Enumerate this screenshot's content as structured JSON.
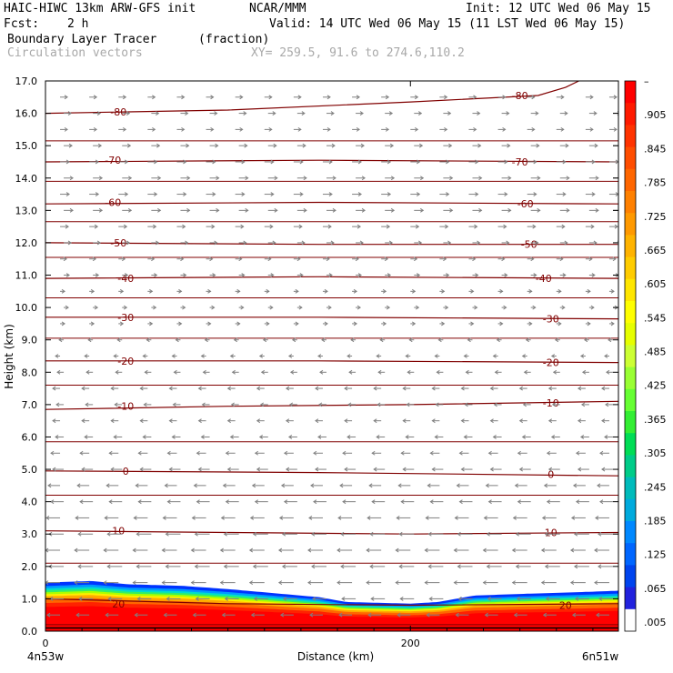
{
  "header": {
    "model": "HAIC-HIWC 13km ARW-GFS init",
    "org": "NCAR/MMM",
    "init": "Init: 12 UTC Wed 06 May 15",
    "fcst_label": "Fcst:",
    "fcst_value": "2 h",
    "valid": "Valid: 14 UTC Wed 06 May 15 (11 LST Wed 06 May 15)",
    "field": "Boundary Layer Tracer",
    "field_units": "(fraction)",
    "overlay": "Circulation vectors",
    "xy": "XY= 259.5, 91.6 to 274.6,110.2"
  },
  "chart_data": {
    "type": "heatmap",
    "ylabel": "Height (km)",
    "xlabel": "Distance (km)",
    "x_left_label": "4n53w",
    "x_right_label": "6n51w",
    "xlim": [
      0,
      314
    ],
    "ylim": [
      0,
      17
    ],
    "x_ticks": [
      0,
      200
    ],
    "x_tick_labels": [
      "0",
      "200"
    ],
    "y_ticks": [
      0,
      1,
      2,
      3,
      4,
      5,
      6,
      7,
      8,
      9,
      10,
      11,
      12,
      13,
      14,
      15,
      16,
      17
    ],
    "y_tick_labels": [
      "0.0",
      "1.0",
      "2.0",
      "3.0",
      "4.0",
      "5.0",
      "6.0",
      "7.0",
      "8.0",
      "9.0",
      "10.0",
      "11.0",
      "12.0",
      "13.0",
      "14.0",
      "15.0",
      "16.0",
      "17.0"
    ],
    "colorbar": {
      "labels": [
        "–",
        ".905",
        ".845",
        ".785",
        ".725",
        ".665",
        ".605",
        ".545",
        ".485",
        ".425",
        ".365",
        ".305",
        ".245",
        ".185",
        ".125",
        ".065",
        ".005"
      ],
      "colors": [
        "#ff0000",
        "#ff1a00",
        "#ff3300",
        "#ff4d00",
        "#ff6600",
        "#ff8000",
        "#ff9900",
        "#ffb300",
        "#ffcc00",
        "#ffe600",
        "#ffff00",
        "#e6ff00",
        "#ccff33",
        "#99ff33",
        "#66ff33",
        "#33ee33",
        "#00dd55",
        "#00cc88",
        "#00bbbb",
        "#00aadd",
        "#0088ff",
        "#0066ff",
        "#0044ee",
        "#2222dd",
        "#ffffff"
      ]
    },
    "tracer_top_km": [
      [
        0,
        1.5
      ],
      [
        25,
        1.55
      ],
      [
        45,
        1.45
      ],
      [
        75,
        1.4
      ],
      [
        100,
        1.3
      ],
      [
        130,
        1.15
      ],
      [
        150,
        1.05
      ],
      [
        165,
        0.9
      ],
      [
        200,
        0.85
      ],
      [
        215,
        0.9
      ],
      [
        235,
        1.1
      ],
      [
        260,
        1.15
      ],
      [
        290,
        1.2
      ],
      [
        314,
        1.25
      ]
    ],
    "temperature_contours_c": [
      {
        "value": "-80",
        "points": [
          [
            0,
            16.0
          ],
          [
            100,
            16.1
          ],
          [
            200,
            16.35
          ],
          [
            270,
            16.55
          ],
          [
            285,
            16.8
          ],
          [
            296,
            17.1
          ]
        ],
        "labels": [
          [
            40,
            16.05
          ],
          [
            260,
            16.55
          ]
        ]
      },
      {
        "value": "-70",
        "points": [
          [
            0,
            14.5
          ],
          [
            150,
            14.55
          ],
          [
            314,
            14.5
          ]
        ],
        "labels": [
          [
            37,
            14.55
          ],
          [
            260,
            14.5
          ]
        ]
      },
      {
        "value": "-60",
        "points": [
          [
            0,
            13.2
          ],
          [
            150,
            13.25
          ],
          [
            314,
            13.2
          ]
        ],
        "labels": [
          [
            37,
            13.25
          ],
          [
            263,
            13.2
          ]
        ]
      },
      {
        "value": "-50",
        "points": [
          [
            0,
            12.0
          ],
          [
            150,
            11.95
          ],
          [
            314,
            11.95
          ]
        ],
        "labels": [
          [
            40,
            12.0
          ],
          [
            265,
            11.95
          ]
        ]
      },
      {
        "value": "-40",
        "points": [
          [
            0,
            10.9
          ],
          [
            150,
            10.95
          ],
          [
            314,
            10.9
          ]
        ],
        "labels": [
          [
            44,
            10.9
          ],
          [
            273,
            10.9
          ]
        ]
      },
      {
        "value": "-30",
        "points": [
          [
            0,
            9.7
          ],
          [
            150,
            9.7
          ],
          [
            314,
            9.65
          ]
        ],
        "labels": [
          [
            44,
            9.7
          ],
          [
            277,
            9.65
          ]
        ]
      },
      {
        "value": "-20",
        "points": [
          [
            0,
            8.35
          ],
          [
            150,
            8.35
          ],
          [
            314,
            8.3
          ]
        ],
        "labels": [
          [
            44,
            8.35
          ],
          [
            277,
            8.3
          ]
        ]
      },
      {
        "value": "-10",
        "points": [
          [
            0,
            6.85
          ],
          [
            100,
            6.95
          ],
          [
            200,
            7.0
          ],
          [
            314,
            7.1
          ]
        ],
        "labels": [
          [
            44,
            6.95
          ],
          [
            277,
            7.05
          ]
        ]
      },
      {
        "value": "0",
        "points": [
          [
            0,
            4.95
          ],
          [
            150,
            4.9
          ],
          [
            314,
            4.8
          ]
        ],
        "labels": [
          [
            44,
            4.95
          ],
          [
            277,
            4.85
          ]
        ]
      },
      {
        "value": "10",
        "points": [
          [
            0,
            3.1
          ],
          [
            100,
            3.05
          ],
          [
            200,
            3.0
          ],
          [
            314,
            3.05
          ]
        ],
        "labels": [
          [
            40,
            3.1
          ],
          [
            277,
            3.05
          ]
        ]
      },
      {
        "value": "20",
        "points": [
          [
            0,
            1.0
          ],
          [
            100,
            0.85
          ],
          [
            200,
            0.8
          ],
          [
            314,
            0.85
          ]
        ],
        "labels": [
          [
            40,
            0.85
          ],
          [
            285,
            0.8
          ]
        ]
      }
    ],
    "other_contour_heights_km": [
      0.2,
      2.1,
      4.2,
      5.85,
      7.6,
      9.05,
      10.3,
      11.55,
      12.65,
      13.9,
      15.15
    ],
    "wind_rows": [
      {
        "z": 16.5,
        "dir": 1,
        "len": 8
      },
      {
        "z": 16.0,
        "dir": 1,
        "len": 8
      },
      {
        "z": 15.5,
        "dir": 1,
        "len": 8
      },
      {
        "z": 15.0,
        "dir": 1,
        "len": 9
      },
      {
        "z": 14.5,
        "dir": 1,
        "len": 10
      },
      {
        "z": 14.0,
        "dir": 1,
        "len": 10
      },
      {
        "z": 13.5,
        "dir": 1,
        "len": 10
      },
      {
        "z": 13.0,
        "dir": 1,
        "len": 10
      },
      {
        "z": 12.5,
        "dir": 1,
        "len": 9
      },
      {
        "z": 12.0,
        "dir": 1,
        "len": 8
      },
      {
        "z": 11.5,
        "dir": 1,
        "len": 7
      },
      {
        "z": 11.0,
        "dir": 1,
        "len": 6
      },
      {
        "z": 10.5,
        "dir": 1,
        "len": 5
      },
      {
        "z": 10.0,
        "dir": 1,
        "len": 5
      },
      {
        "z": 9.5,
        "dir": 1,
        "len": 5
      },
      {
        "z": 9.0,
        "dir": -1,
        "len": 5
      },
      {
        "z": 8.5,
        "dir": -1,
        "len": 5
      },
      {
        "z": 8.0,
        "dir": -1,
        "len": 7
      },
      {
        "z": 7.5,
        "dir": -1,
        "len": 8
      },
      {
        "z": 7.0,
        "dir": -1,
        "len": 8
      },
      {
        "z": 6.5,
        "dir": -1,
        "len": 8
      },
      {
        "z": 6.0,
        "dir": -1,
        "len": 9
      },
      {
        "z": 5.5,
        "dir": -1,
        "len": 10
      },
      {
        "z": 5.0,
        "dir": -1,
        "len": 12
      },
      {
        "z": 4.5,
        "dir": -1,
        "len": 13
      },
      {
        "z": 4.0,
        "dir": -1,
        "len": 14
      },
      {
        "z": 3.5,
        "dir": -1,
        "len": 15
      },
      {
        "z": 3.0,
        "dir": -1,
        "len": 16
      },
      {
        "z": 2.5,
        "dir": -1,
        "len": 16
      },
      {
        "z": 2.0,
        "dir": -1,
        "len": 16
      },
      {
        "z": 1.5,
        "dir": -1,
        "len": 16
      },
      {
        "z": 1.0,
        "dir": -1,
        "len": 15
      },
      {
        "z": 0.5,
        "dir": -1,
        "len": 14
      }
    ],
    "wind_columns_km": [
      8,
      24,
      40,
      56,
      72,
      88,
      104,
      120,
      136,
      152,
      168,
      184,
      200,
      216,
      232,
      248,
      264,
      280,
      296,
      309
    ],
    "colors": {
      "contour": "#800000",
      "vector": "#808080",
      "header_grey": "#a9a9a9"
    }
  }
}
